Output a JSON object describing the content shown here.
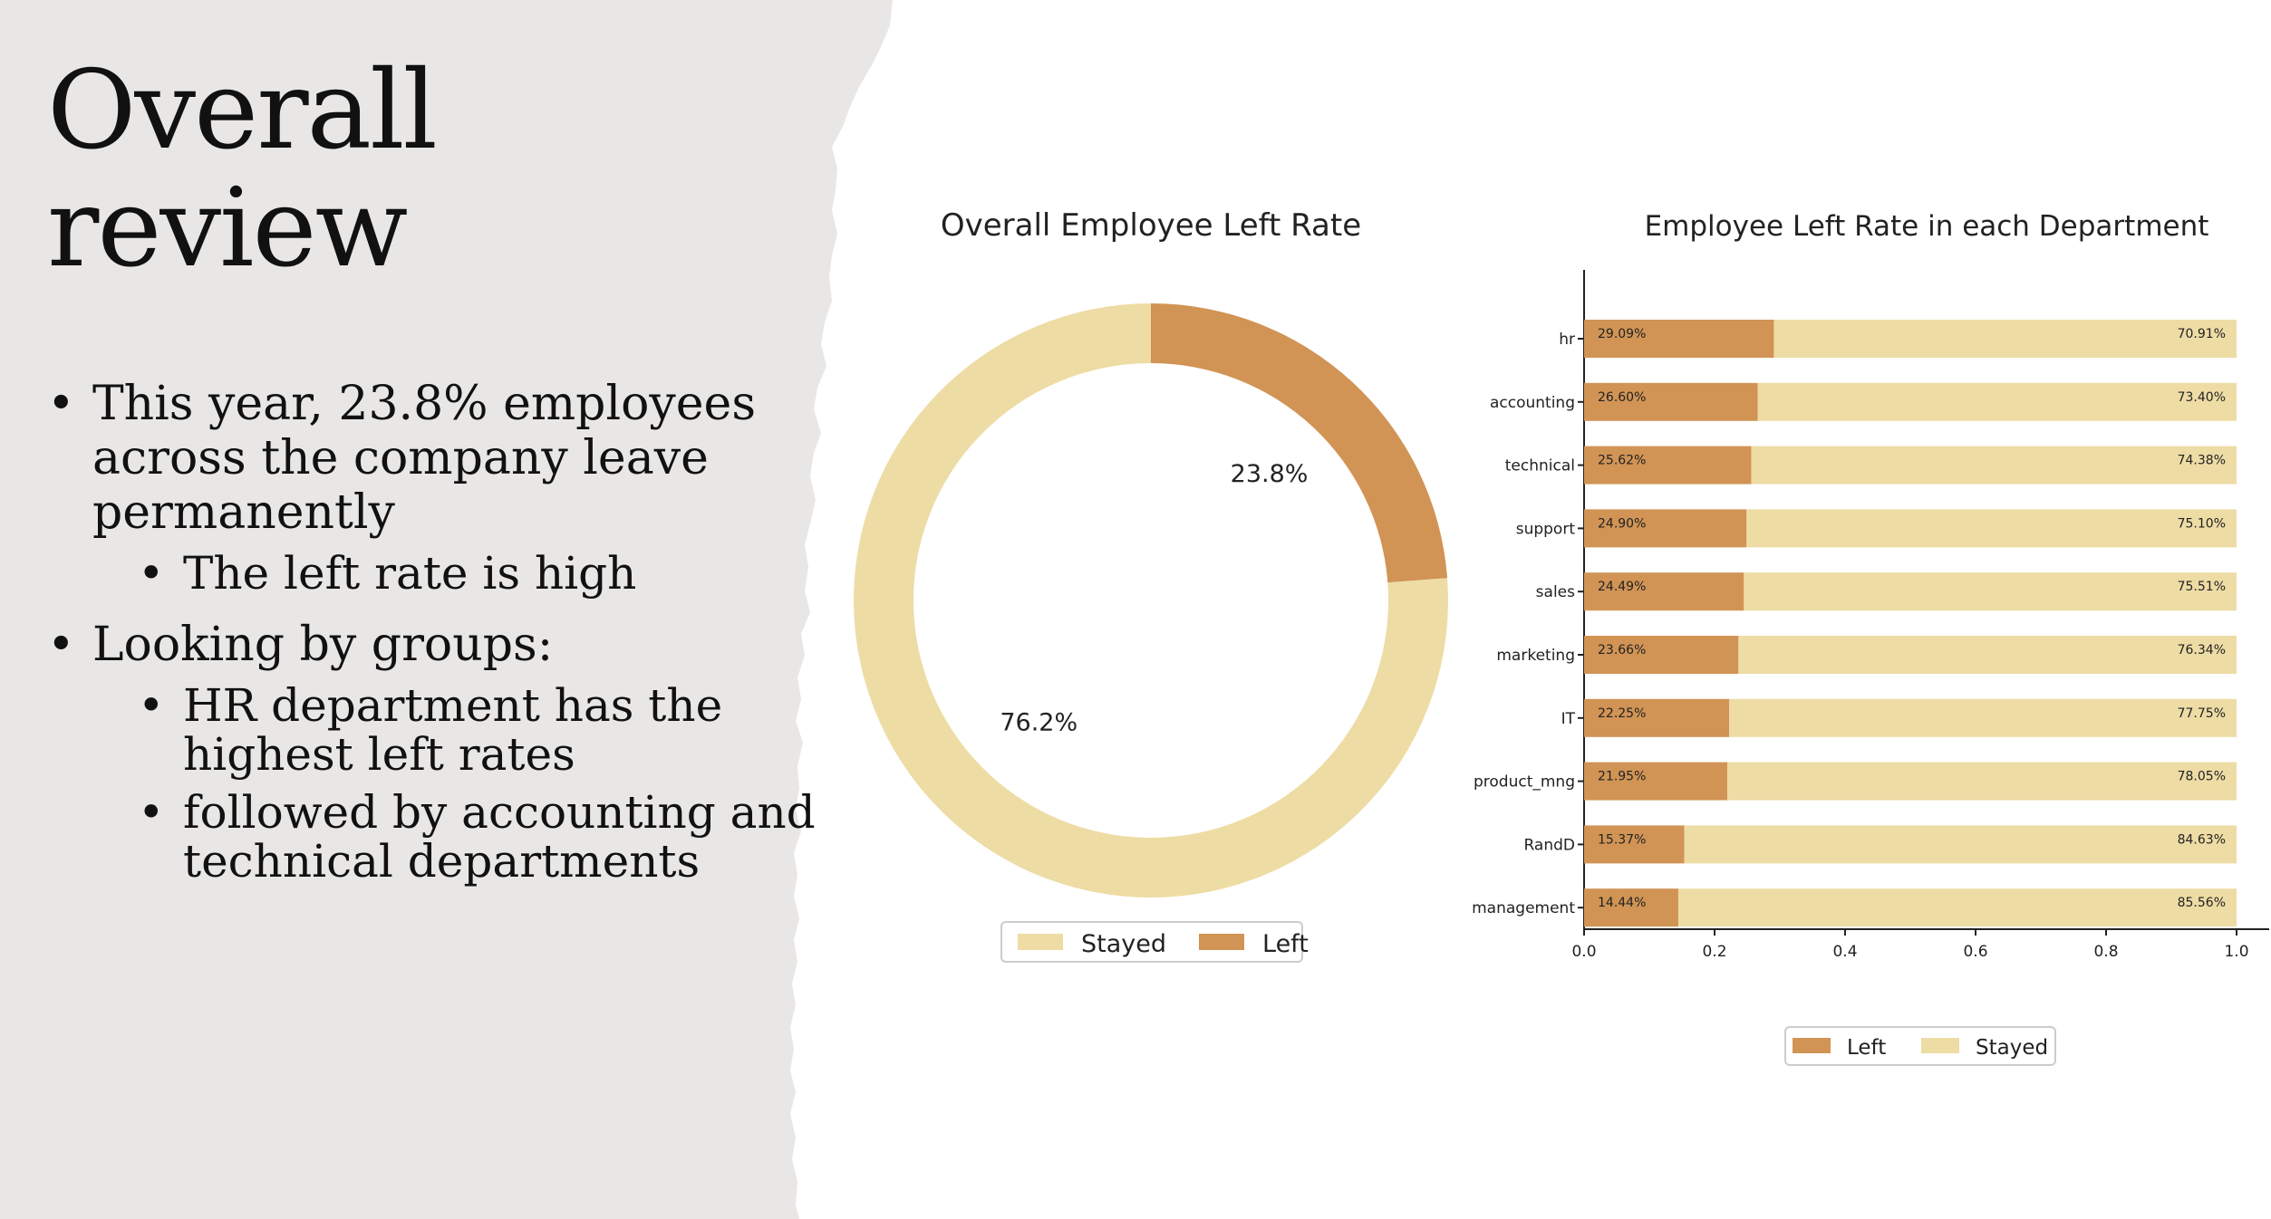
{
  "slide": {
    "title_line1": "Overall",
    "title_line2": "review",
    "bullets": [
      {
        "text": "This year, 23.8% employees across the company leave permanently",
        "sub": [
          "The left rate is high"
        ]
      },
      {
        "text": "Looking by groups:",
        "sub": [
          "HR department has the highest left rates",
          "followed by accounting and technical departments"
        ]
      }
    ]
  },
  "colors": {
    "left": "#D19455",
    "stayed": "#EEDCA5",
    "panel_bg": "#E8E7E6"
  },
  "chart_data": [
    {
      "type": "pie",
      "title": "Overall Employee Left Rate",
      "labels": [
        "Stayed",
        "Left"
      ],
      "values": [
        76.2,
        23.8
      ],
      "slice_labels": [
        "76.2%",
        "23.8%"
      ],
      "donut": true,
      "legend": [
        "Stayed",
        "Left"
      ],
      "legend_position": "bottom"
    },
    {
      "type": "bar",
      "orientation": "horizontal",
      "stacked": true,
      "title": "Employee Left Rate in each Department",
      "categories": [
        "hr",
        "accounting",
        "technical",
        "support",
        "sales",
        "marketing",
        "IT",
        "product_mng",
        "RandD",
        "management"
      ],
      "series": [
        {
          "name": "Left",
          "values": [
            0.2909,
            0.266,
            0.2562,
            0.249,
            0.2449,
            0.2366,
            0.2225,
            0.2195,
            0.1537,
            0.1444
          ],
          "labels": [
            "29.09%",
            "26.60%",
            "25.62%",
            "24.90%",
            "24.49%",
            "23.66%",
            "22.25%",
            "21.95%",
            "15.37%",
            "14.44%"
          ]
        },
        {
          "name": "Stayed",
          "values": [
            0.7091,
            0.734,
            0.7438,
            0.751,
            0.7551,
            0.7634,
            0.7775,
            0.7805,
            0.8463,
            0.8556
          ],
          "labels": [
            "70.91%",
            "73.40%",
            "74.38%",
            "75.10%",
            "75.51%",
            "76.34%",
            "77.75%",
            "78.05%",
            "84.63%",
            "85.56%"
          ]
        }
      ],
      "xlim": [
        0,
        1.0
      ],
      "xticks": [
        "0.0",
        "0.2",
        "0.4",
        "0.6",
        "0.8",
        "1.0"
      ],
      "legend": [
        "Left",
        "Stayed"
      ],
      "legend_position": "bottom"
    }
  ]
}
